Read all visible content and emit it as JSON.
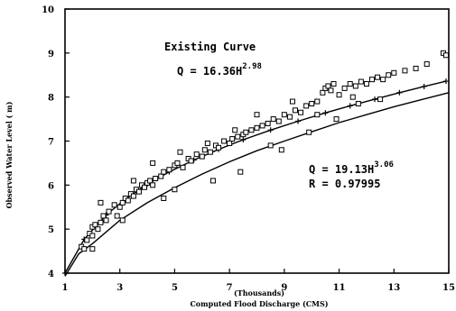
{
  "chart_data": {
    "type": "scatter",
    "title": "",
    "xlabel": "Computed Flood Discharge (CMS)",
    "xlabel_multiplier": "(Thousands)",
    "ylabel": "Observed Water Level ( m)",
    "xlim": [
      1,
      15
    ],
    "ylim": [
      4,
      10
    ],
    "x_ticks": [
      1,
      3,
      5,
      7,
      9,
      11,
      13,
      15
    ],
    "x_tick_labels": [
      "1",
      "3",
      "5",
      "7",
      "9",
      "11",
      "13",
      "15"
    ],
    "y_ticks": [
      4,
      5,
      6,
      7,
      8,
      9,
      10
    ],
    "y_tick_labels": [
      "4",
      "5",
      "6",
      "7",
      "8",
      "9",
      "10"
    ],
    "grid": false,
    "annotations": {
      "existing_curve_label": "Existing Curve",
      "existing_eq_base": "Q = 16.36H",
      "existing_eq_exp": "2.98",
      "fitted_eq_base": "Q = 19.13H",
      "fitted_eq_exp": "3.06",
      "fitted_r": "R = 0.97995"
    },
    "series": [
      {
        "marker": "plus",
        "curve": "existing",
        "x": [
          1.0,
          1.7,
          2.5,
          3.2,
          4.0,
          4.8,
          5.7,
          6.6,
          7.5,
          8.5,
          9.5,
          10.5,
          11.4,
          12.3,
          13.2,
          14.1,
          14.9
        ],
        "values": [
          4.0,
          4.77,
          5.32,
          5.68,
          6.02,
          6.3,
          6.57,
          6.81,
          7.03,
          7.25,
          7.45,
          7.64,
          7.8,
          7.95,
          8.1,
          8.24,
          8.36
        ]
      },
      {
        "marker": "line",
        "curve": "fitted",
        "x": [
          1.0,
          1.5,
          2.0,
          3.0,
          4.0,
          5.0,
          6.0,
          7.0,
          8.0,
          9.0,
          10.0,
          11.0,
          12.0,
          13.0,
          14.0,
          15.0
        ],
        "values": [
          3.93,
          4.44,
          4.67,
          5.2,
          5.6,
          5.94,
          6.25,
          6.53,
          6.78,
          7.0,
          7.21,
          7.42,
          7.6,
          7.78,
          7.94,
          8.1
        ]
      },
      {
        "marker": "square",
        "curve": "observed",
        "x": [
          1.6,
          1.7,
          1.8,
          1.9,
          2.0,
          2.0,
          2.1,
          2.2,
          2.3,
          2.4,
          2.5,
          2.6,
          2.8,
          2.9,
          3.0,
          3.1,
          3.2,
          3.3,
          3.4,
          3.5,
          3.6,
          3.7,
          3.8,
          3.9,
          4.0,
          4.1,
          4.2,
          4.3,
          4.5,
          4.6,
          4.8,
          5.0,
          5.1,
          5.3,
          5.5,
          5.6,
          5.8,
          6.0,
          6.1,
          6.3,
          6.5,
          6.6,
          6.8,
          7.0,
          7.1,
          7.3,
          7.5,
          7.6,
          7.8,
          8.0,
          8.2,
          8.4,
          8.6,
          8.8,
          9.0,
          9.2,
          9.4,
          9.6,
          9.8,
          10.0,
          10.2,
          10.4,
          10.5,
          10.6,
          10.7,
          10.8,
          11.0,
          11.2,
          11.4,
          11.6,
          11.8,
          12.0,
          12.2,
          12.4,
          12.6,
          12.8,
          13.0,
          13.4,
          13.8,
          14.2,
          14.8,
          14.9,
          2.0,
          2.3,
          3.1,
          3.5,
          4.6,
          5.2,
          6.4,
          7.2,
          8.5,
          9.3,
          10.2,
          11.5,
          12.5,
          4.2,
          5.0,
          6.2,
          7.4,
          8.0,
          8.9,
          9.9,
          10.9,
          11.7
        ],
        "values": [
          4.6,
          4.55,
          4.75,
          4.9,
          4.85,
          5.05,
          5.1,
          5.0,
          5.15,
          5.3,
          5.2,
          5.4,
          5.55,
          5.3,
          5.5,
          5.6,
          5.7,
          5.65,
          5.8,
          5.75,
          5.9,
          5.85,
          6.0,
          5.95,
          6.05,
          6.1,
          6.0,
          6.15,
          6.2,
          6.3,
          6.35,
          6.45,
          6.5,
          6.4,
          6.6,
          6.55,
          6.7,
          6.65,
          6.8,
          6.75,
          6.9,
          6.85,
          7.0,
          6.95,
          7.05,
          7.1,
          7.15,
          7.2,
          7.25,
          7.3,
          7.35,
          7.4,
          7.5,
          7.45,
          7.6,
          7.55,
          7.7,
          7.65,
          7.8,
          7.85,
          7.9,
          8.1,
          8.2,
          8.25,
          8.15,
          8.3,
          8.05,
          8.2,
          8.3,
          8.25,
          8.35,
          8.3,
          8.4,
          8.45,
          8.4,
          8.5,
          8.55,
          8.6,
          8.65,
          8.75,
          9.0,
          8.95,
          4.55,
          5.6,
          5.2,
          6.1,
          5.7,
          6.75,
          6.1,
          7.25,
          6.9,
          7.9,
          7.6,
          8.0,
          7.95,
          6.5,
          5.9,
          6.95,
          6.3,
          7.6,
          6.8,
          7.2,
          7.5,
          7.85
        ]
      }
    ]
  }
}
